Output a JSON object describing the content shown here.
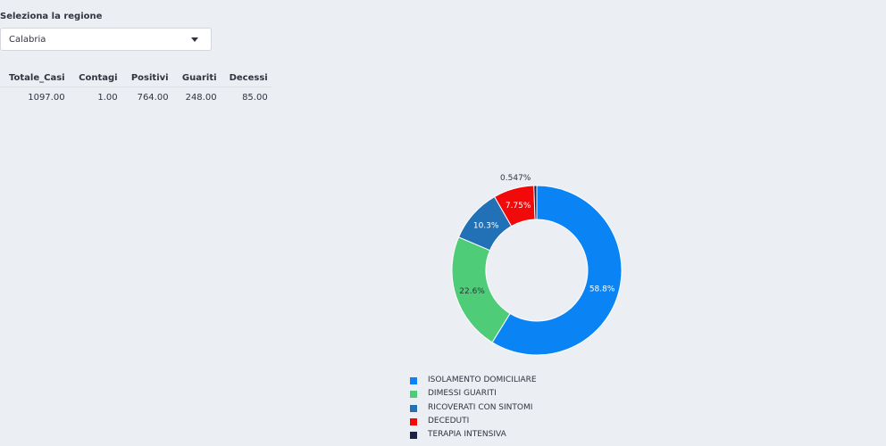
{
  "selector": {
    "label": "Seleziona la regione",
    "value": "Calabria"
  },
  "table": {
    "headers": [
      "Totale_Casi",
      "Contagi",
      "Positivi",
      "Guariti",
      "Decessi"
    ],
    "rows": [
      [
        "1097.00",
        "1.00",
        "764.00",
        "248.00",
        "85.00"
      ]
    ]
  },
  "chart_data": {
    "type": "pie",
    "hole": 0.6,
    "labels": [
      "ISOLAMENTO DOMICILIARE",
      "DIMESSI GUARITI",
      "RICOVERATI CON SINTOMI",
      "DECEDUTI",
      "TERAPIA INTENSIVA"
    ],
    "percent_labels": [
      "58.8%",
      "22.6%",
      "10.3%",
      "7.75%",
      "0.547%"
    ],
    "values": [
      58.8,
      22.6,
      10.3,
      7.75,
      0.547
    ],
    "colors": [
      "#0a84f4",
      "#4fcc77",
      "#2271b6",
      "#f20a0a",
      "#1e2146"
    ],
    "legend_position": "bottom"
  }
}
